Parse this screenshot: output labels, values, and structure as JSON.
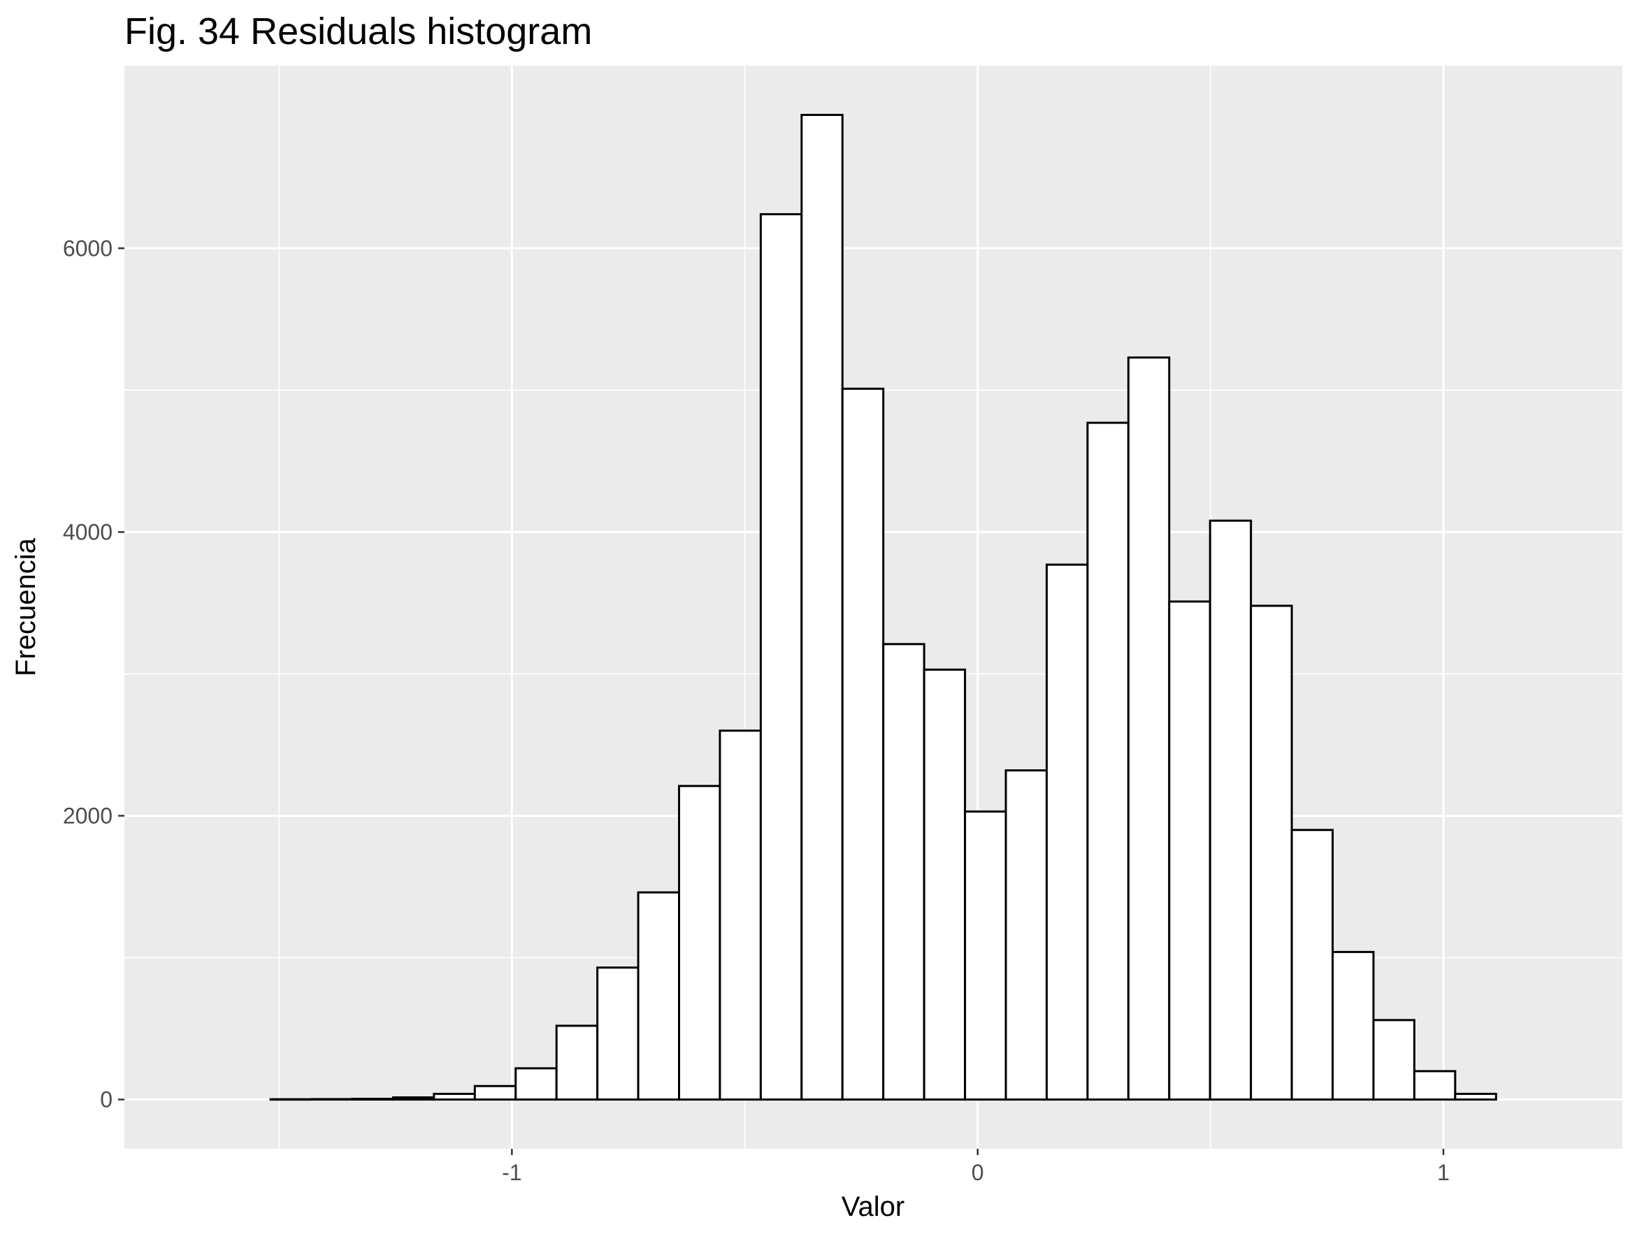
{
  "chart_data": {
    "type": "bar",
    "title": "Fig. 34 Residuals histogram",
    "xlabel": "Valor",
    "ylabel": "Frecuencia",
    "bin_width": 0.0877,
    "bins": [
      {
        "x0": -1.5181,
        "x1": -1.4304,
        "count": 2
      },
      {
        "x0": -1.4304,
        "x1": -1.3427,
        "count": 3
      },
      {
        "x0": -1.3427,
        "x1": -1.255,
        "count": 5
      },
      {
        "x0": -1.255,
        "x1": -1.1673,
        "count": 15
      },
      {
        "x0": -1.1673,
        "x1": -1.0796,
        "count": 40
      },
      {
        "x0": -1.0796,
        "x1": -0.9919,
        "count": 95
      },
      {
        "x0": -0.9919,
        "x1": -0.9042,
        "count": 220
      },
      {
        "x0": -0.9042,
        "x1": -0.8165,
        "count": 520
      },
      {
        "x0": -0.8165,
        "x1": -0.7288,
        "count": 930
      },
      {
        "x0": -0.7288,
        "x1": -0.6411,
        "count": 1460
      },
      {
        "x0": -0.6411,
        "x1": -0.5534,
        "count": 2210
      },
      {
        "x0": -0.5534,
        "x1": -0.4657,
        "count": 2600
      },
      {
        "x0": -0.4657,
        "x1": -0.378,
        "count": 6240
      },
      {
        "x0": -0.378,
        "x1": -0.2903,
        "count": 6940
      },
      {
        "x0": -0.2903,
        "x1": -0.2026,
        "count": 5010
      },
      {
        "x0": -0.2026,
        "x1": -0.1149,
        "count": 3210
      },
      {
        "x0": -0.1149,
        "x1": -0.0272,
        "count": 3030
      },
      {
        "x0": -0.0272,
        "x1": 0.0605,
        "count": 2030
      },
      {
        "x0": 0.0605,
        "x1": 0.1482,
        "count": 2320
      },
      {
        "x0": 0.1482,
        "x1": 0.2359,
        "count": 3770
      },
      {
        "x0": 0.2359,
        "x1": 0.3236,
        "count": 4770
      },
      {
        "x0": 0.3236,
        "x1": 0.4113,
        "count": 5230
      },
      {
        "x0": 0.4113,
        "x1": 0.499,
        "count": 3510
      },
      {
        "x0": 0.499,
        "x1": 0.5867,
        "count": 4080
      },
      {
        "x0": 0.5867,
        "x1": 0.6744,
        "count": 3480
      },
      {
        "x0": 0.6744,
        "x1": 0.7621,
        "count": 1900
      },
      {
        "x0": 0.7621,
        "x1": 0.8498,
        "count": 1040
      },
      {
        "x0": 0.8498,
        "x1": 0.9375,
        "count": 560
      },
      {
        "x0": 0.9375,
        "x1": 1.0252,
        "count": 200
      },
      {
        "x0": 1.0252,
        "x1": 1.1129,
        "count": 40
      }
    ],
    "x_ticks": [
      -1,
      0,
      1
    ],
    "x_tick_labels": [
      "-1",
      "0",
      "1"
    ],
    "x_minor_ticks": [
      -1.5,
      -0.5,
      0.5
    ],
    "y_ticks": [
      0,
      2000,
      4000,
      6000
    ],
    "y_tick_labels": [
      "0",
      "2000",
      "4000",
      "6000"
    ],
    "y_minor_ticks": [
      1000,
      3000,
      5000
    ],
    "xlim": [
      -1.8319,
      1.3841
    ],
    "ylim": [
      -347,
      7287
    ],
    "grid": true,
    "legend": "none",
    "colors": {
      "panel_background": "#ebebeb",
      "grid": "#ffffff",
      "bar_fill": "#ffffff",
      "bar_stroke": "#000000",
      "tick_label": "#4d4d4d",
      "tick_mark": "#333333"
    }
  }
}
